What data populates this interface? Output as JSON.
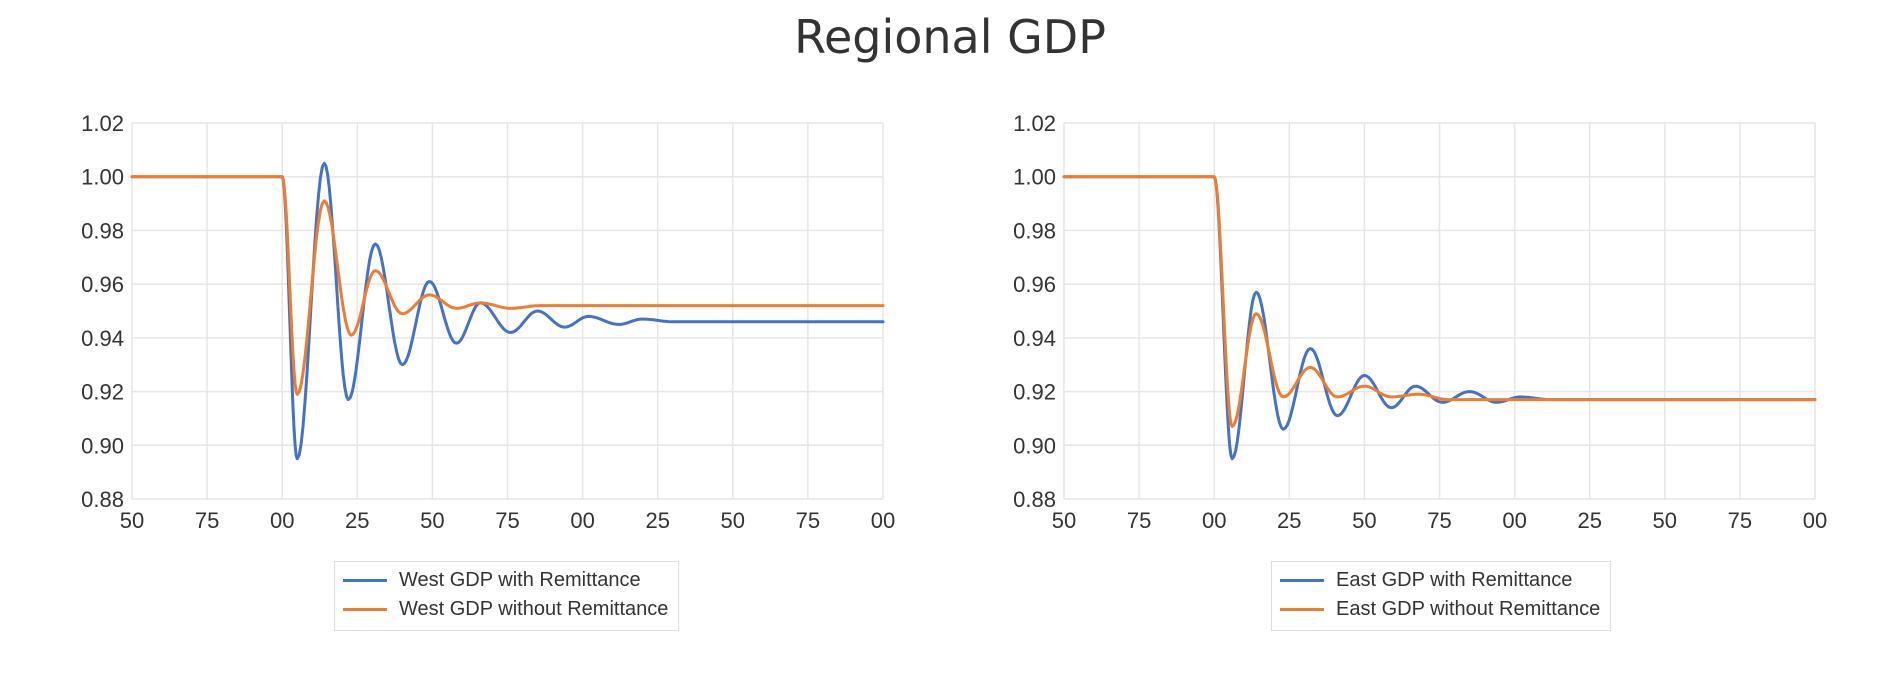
{
  "page": {
    "title": "Regional GDP"
  },
  "colors": {
    "with": "#4472c4",
    "without": "#ed7d31",
    "grid": "#e6e6e6"
  },
  "chart_data": [
    {
      "type": "line",
      "ylim": [
        0.88,
        1.02
      ],
      "yticks": [
        "0.88",
        "0.90",
        "0.92",
        "0.94",
        "0.96",
        "0.98",
        "1.00",
        "1.02"
      ],
      "xlim": [
        1950,
        2200
      ],
      "xticks": [
        "50",
        "75",
        "00",
        "25",
        "50",
        "75",
        "00",
        "25",
        "50",
        "75",
        "00"
      ],
      "grid": true,
      "legend_position": "bottom",
      "shock_x": 2000,
      "series": [
        {
          "name": "West GDP with Remittance",
          "color": "#4472c4",
          "pre": 1.0,
          "final": 0.946,
          "troughs_peaks": [
            [
              2005,
              0.895
            ],
            [
              2014,
              1.005
            ],
            [
              2022,
              0.917
            ],
            [
              2031,
              0.975
            ],
            [
              2040,
              0.93
            ],
            [
              2049,
              0.961
            ],
            [
              2058,
              0.938
            ],
            [
              2066,
              0.953
            ],
            [
              2076,
              0.942
            ],
            [
              2085,
              0.95
            ],
            [
              2094,
              0.944
            ],
            [
              2102,
              0.948
            ],
            [
              2112,
              0.945
            ],
            [
              2120,
              0.947
            ]
          ]
        },
        {
          "name": "West GDP without Remittance",
          "color": "#ed7d31",
          "pre": 1.0,
          "final": 0.952,
          "troughs_peaks": [
            [
              2005,
              0.919
            ],
            [
              2014,
              0.991
            ],
            [
              2023,
              0.941
            ],
            [
              2031,
              0.965
            ],
            [
              2040,
              0.949
            ],
            [
              2049,
              0.956
            ],
            [
              2058,
              0.951
            ],
            [
              2066,
              0.953
            ],
            [
              2076,
              0.951
            ],
            [
              2086,
              0.952
            ]
          ]
        }
      ]
    },
    {
      "type": "line",
      "ylim": [
        0.88,
        1.02
      ],
      "yticks": [
        "0.88",
        "0.90",
        "0.92",
        "0.94",
        "0.96",
        "0.98",
        "1.00",
        "1.02"
      ],
      "xlim": [
        1950,
        2200
      ],
      "xticks": [
        "50",
        "75",
        "00",
        "25",
        "50",
        "75",
        "00",
        "25",
        "50",
        "75",
        "00"
      ],
      "grid": true,
      "legend_position": "bottom",
      "shock_x": 2000,
      "series": [
        {
          "name": "East GDP with Remittance",
          "color": "#4472c4",
          "pre": 1.0,
          "final": 0.917,
          "troughs_peaks": [
            [
              2006,
              0.895
            ],
            [
              2014,
              0.957
            ],
            [
              2023,
              0.906
            ],
            [
              2032,
              0.936
            ],
            [
              2041,
              0.911
            ],
            [
              2050,
              0.926
            ],
            [
              2059,
              0.914
            ],
            [
              2067,
              0.922
            ],
            [
              2076,
              0.916
            ],
            [
              2085,
              0.92
            ],
            [
              2094,
              0.916
            ],
            [
              2102,
              0.918
            ],
            [
              2112,
              0.917
            ]
          ]
        },
        {
          "name": "East GDP without Remittance",
          "color": "#ed7d31",
          "pre": 1.0,
          "final": 0.917,
          "troughs_peaks": [
            [
              2006,
              0.907
            ],
            [
              2014,
              0.949
            ],
            [
              2023,
              0.918
            ],
            [
              2032,
              0.929
            ],
            [
              2041,
              0.918
            ],
            [
              2050,
              0.922
            ],
            [
              2059,
              0.918
            ],
            [
              2068,
              0.919
            ],
            [
              2078,
              0.917
            ]
          ]
        }
      ]
    }
  ]
}
